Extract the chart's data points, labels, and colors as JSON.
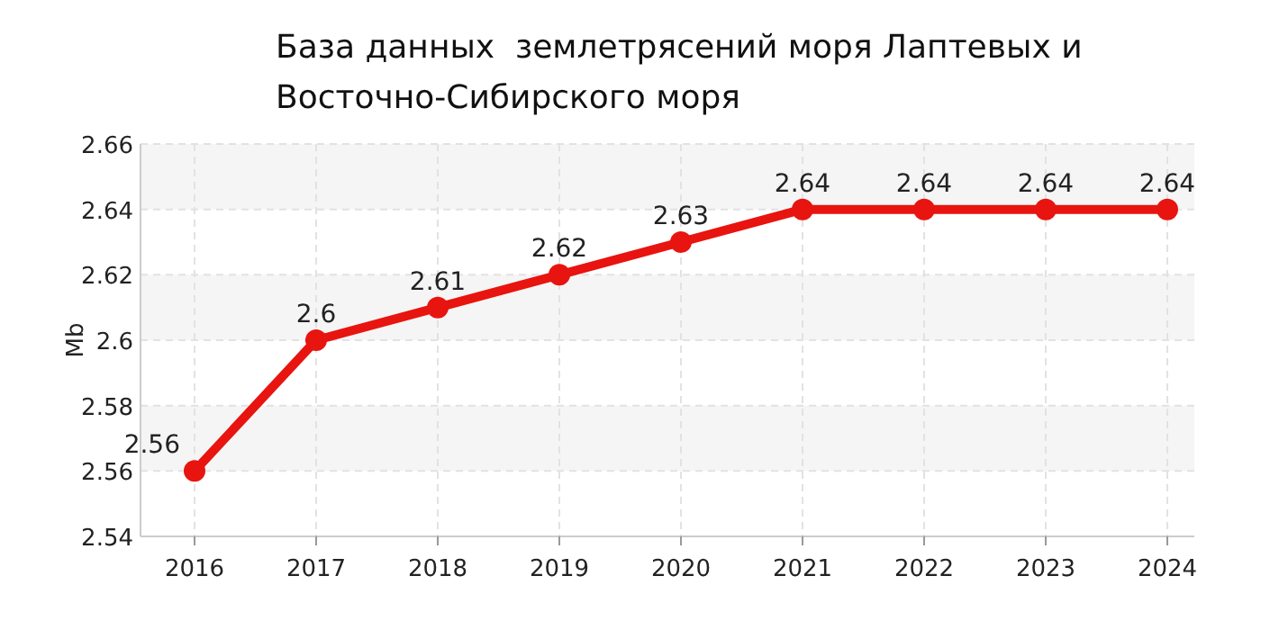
{
  "chart_data": {
    "type": "line",
    "title": "База данных  землетрясений моря Лаптевых и\nВосточно-Сибирского моря",
    "ylabel": "Mb",
    "categories": [
      "2016",
      "2017",
      "2018",
      "2019",
      "2020",
      "2021",
      "2022",
      "2023",
      "2024"
    ],
    "series": [
      {
        "color": "#e8140f",
        "values": [
          2.56,
          2.6,
          2.61,
          2.62,
          2.63,
          2.64,
          2.64,
          2.64,
          2.64
        ]
      }
    ],
    "ylim": [
      2.54,
      2.66
    ],
    "yticks": [
      2.54,
      2.56,
      2.58,
      2.6,
      2.62,
      2.64,
      2.66
    ],
    "grid": true,
    "marker": "circle",
    "line_style": "solid",
    "data_labels": true
  }
}
